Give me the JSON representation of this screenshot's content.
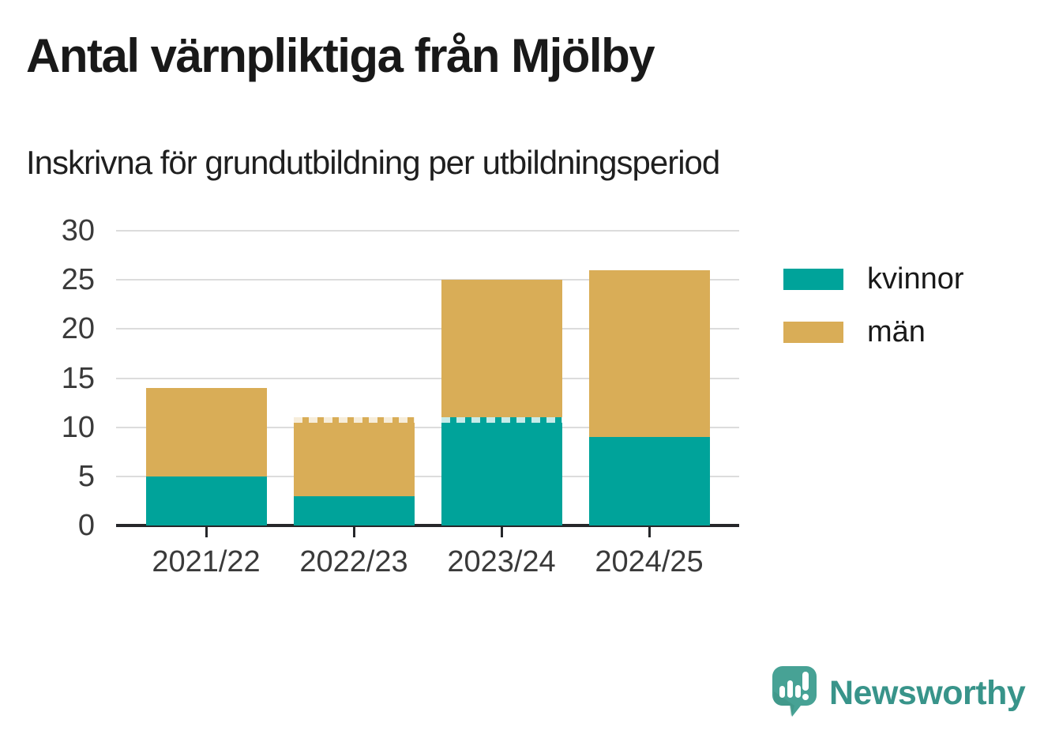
{
  "header": {
    "title": "Antal värnpliktiga från Mjölby",
    "subtitle": "Inskrivna för grundutbildning per utbildningsperiod"
  },
  "chart_data": {
    "type": "bar",
    "stacked": true,
    "title": "Antal värnpliktiga från Mjölby",
    "subtitle": "Inskrivna för grundutbildning per utbildningsperiod",
    "categories": [
      "2021/22",
      "2022/23",
      "2023/24",
      "2024/25"
    ],
    "series": [
      {
        "name": "kvinnor",
        "color": "#00a39a",
        "values": [
          5,
          3,
          11,
          9
        ]
      },
      {
        "name": "män",
        "color": "#d9ad57",
        "values": [
          9,
          8,
          14,
          17
        ]
      }
    ],
    "stack_totals": [
      14,
      11,
      25,
      26
    ],
    "xlabel": "",
    "ylabel": "",
    "ylim": [
      0,
      30
    ],
    "yticks": [
      0,
      5,
      10,
      15,
      20,
      25,
      30
    ],
    "grid": true,
    "legend_position": "right",
    "dashed_top_marks": [
      {
        "category": "2022/23",
        "series": "män"
      },
      {
        "category": "2023/24",
        "series": "kvinnor"
      }
    ]
  },
  "footer": {
    "brand": "Newsworthy",
    "brand_color": "#38948a",
    "logo_icon": "newsworthy-speech-bubble-chart-icon"
  },
  "colors": {
    "background": "#ffffff",
    "title_text": "#191919",
    "axis_text": "#3a3a3a",
    "gridline": "#dcdcdc",
    "axis_line": "#26272a",
    "kvinnor": "#00a39a",
    "man": "#d9ad57"
  }
}
